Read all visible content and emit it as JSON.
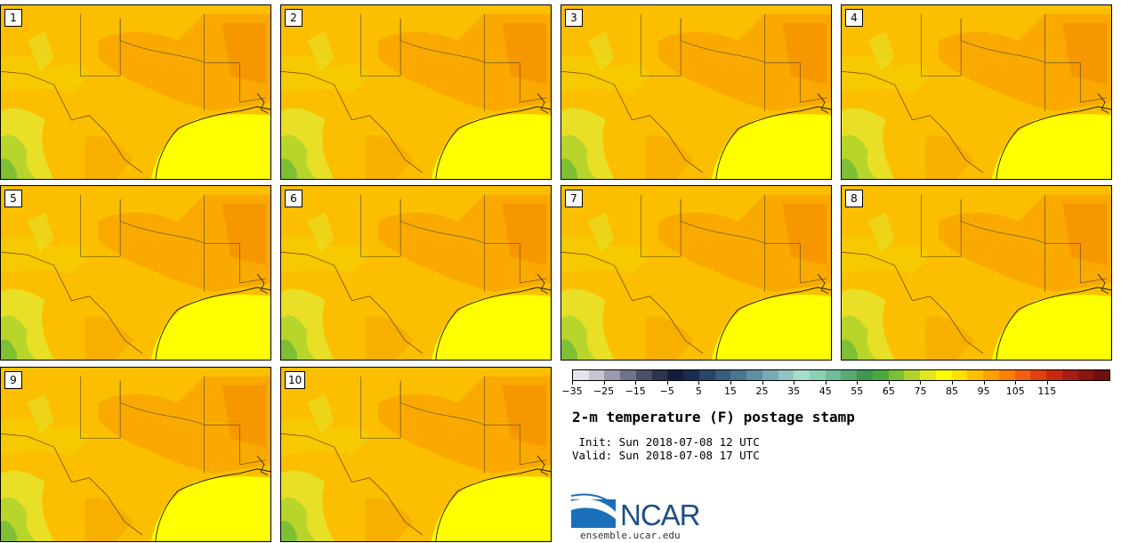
{
  "panels": [
    "1",
    "2",
    "3",
    "4",
    "5",
    "6",
    "7",
    "8",
    "9",
    "10"
  ],
  "colorbar": {
    "colors": [
      "#e4e4ec",
      "#c6c6d2",
      "#9a9aae",
      "#70728a",
      "#4a5068",
      "#2c3450",
      "#141e3c",
      "#1a2c52",
      "#2a4468",
      "#3a5c7e",
      "#4a7690",
      "#5e90a2",
      "#78aab6",
      "#92c4c4",
      "#a6dccc",
      "#8cd0b4",
      "#70bc96",
      "#58aa74",
      "#40984e",
      "#4aa83c",
      "#7cc034",
      "#b0d42a",
      "#e0e620",
      "#ffff00",
      "#ffe000",
      "#ffc000",
      "#ffa000",
      "#ff8000",
      "#f06010",
      "#e04010",
      "#c82a10",
      "#a81e12",
      "#8c1610",
      "#6e1010"
    ],
    "tick_labels": [
      "−35",
      "−25",
      "−15",
      "−5",
      "5",
      "15",
      "25",
      "35",
      "45",
      "55",
      "65",
      "75",
      "85",
      "95",
      "105",
      "115"
    ]
  },
  "title": "2-m temperature (F) postage stamp",
  "init": " Init: Sun 2018-07-08 12 UTC",
  "valid": "Valid: Sun 2018-07-08 17 UTC",
  "logo_text": "NCAR",
  "site": "ensemble.ucar.edu"
}
